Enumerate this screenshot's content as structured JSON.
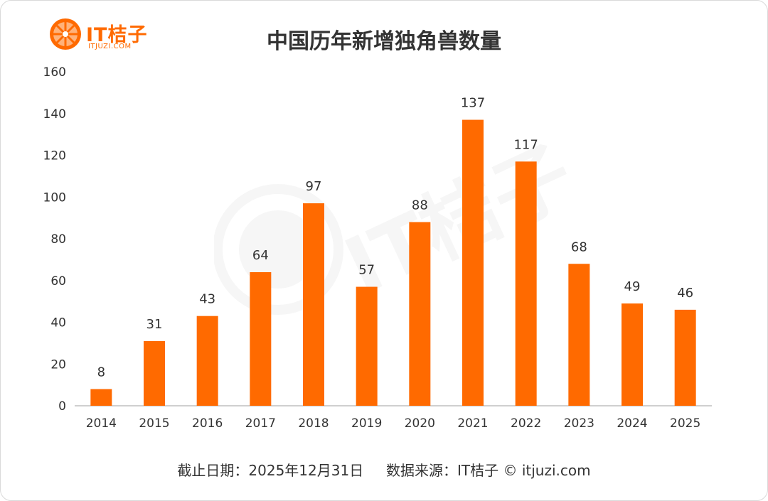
{
  "logo": {
    "text": "IT桔子",
    "subtext": "ITJUZI.COM"
  },
  "colors": {
    "bar": "#ff6a00",
    "brand": "#ff6a00",
    "axis": "#bfbfbf",
    "text": "#333333"
  },
  "chart_data": {
    "type": "bar",
    "title": "中国历年新增独角兽数量",
    "categories": [
      "2014",
      "2015",
      "2016",
      "2017",
      "2018",
      "2019",
      "2020",
      "2021",
      "2022",
      "2023",
      "2024",
      "2025"
    ],
    "values": [
      8,
      31,
      43,
      64,
      97,
      57,
      88,
      137,
      117,
      68,
      49,
      46
    ],
    "ylim": [
      0,
      160
    ],
    "yticks": [
      0,
      20,
      40,
      60,
      80,
      100,
      120,
      140,
      160
    ],
    "grid": false,
    "data_labels": true
  },
  "footer": "截止日期：2025年12月31日     数据来源：IT桔子 © itjuzi.com"
}
